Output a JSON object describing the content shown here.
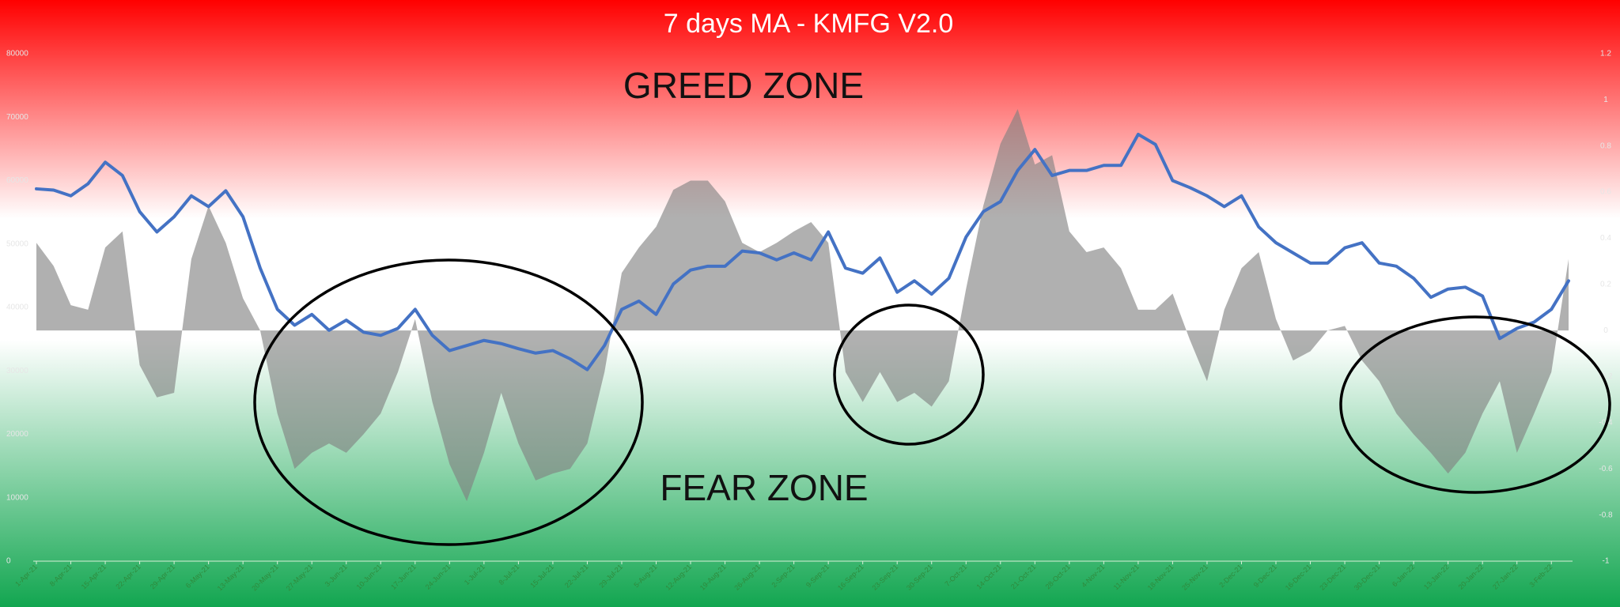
{
  "chart_data": {
    "type": "line",
    "title": "7 days MA - KMFG V2.0",
    "annotations": [
      "GREED ZONE",
      "FEAR ZONE"
    ],
    "categories": [
      "1-Apr-21",
      null,
      "8-Apr-21",
      null,
      "15-Apr-21",
      null,
      "22-Apr-21",
      null,
      "29-Apr-21",
      null,
      "6-May-21",
      null,
      "13-May-21",
      null,
      "20-May-21",
      null,
      "27-May-21",
      null,
      "3-Jun-21",
      null,
      "10-Jun-21",
      null,
      "17-Jun-21",
      null,
      "24-Jun-21",
      null,
      "1-Jul-21",
      null,
      "8-Jul-21",
      null,
      "15-Jul-21",
      null,
      "22-Jul-21",
      null,
      "29-Jul-21",
      null,
      "5-Aug-21",
      null,
      "12-Aug-21",
      null,
      "19-Aug-21",
      null,
      "26-Aug-21",
      null,
      "2-Sep-21",
      null,
      "9-Sep-21",
      null,
      "16-Sep-21",
      null,
      "23-Sep-21",
      null,
      "30-Sep-21",
      null,
      "7-Oct-21",
      null,
      "14-Oct-21",
      null,
      "21-Oct-21",
      null,
      "28-Oct-21",
      null,
      "4-Nov-21",
      null,
      "11-Nov-21",
      null,
      "18-Nov-21",
      null,
      "25-Nov-21",
      null,
      "2-Dec-21",
      null,
      "9-Dec-21",
      null,
      "16-Dec-21",
      null,
      "23-Dec-21",
      null,
      "30-Dec-21",
      null,
      "6-Jan-22",
      null,
      "13-Jan-22",
      null,
      "20-Jan-22",
      null,
      "27-Jan-22",
      null,
      "3-Feb-22",
      null
    ],
    "series": [
      {
        "type": "area",
        "axis": "y2",
        "color": "#7f7f7f",
        "values": [
          0.38,
          0.28,
          0.11,
          0.09,
          0.36,
          0.43,
          -0.15,
          -0.29,
          -0.27,
          0.31,
          0.54,
          0.38,
          0.14,
          0.0,
          -0.36,
          -0.6,
          -0.53,
          -0.49,
          -0.53,
          -0.45,
          -0.36,
          -0.18,
          0.05,
          -0.31,
          -0.58,
          -0.74,
          -0.53,
          -0.27,
          -0.49,
          -0.65,
          -0.62,
          -0.6,
          -0.49,
          -0.18,
          0.25,
          0.36,
          0.45,
          0.61,
          0.65,
          0.65,
          0.56,
          0.38,
          0.34,
          0.38,
          0.43,
          0.47,
          0.38,
          -0.18,
          -0.31,
          -0.18,
          -0.31,
          -0.27,
          -0.33,
          -0.22,
          0.18,
          0.54,
          0.81,
          0.96,
          0.72,
          0.76,
          0.43,
          0.34,
          0.36,
          0.27,
          0.09,
          0.09,
          0.16,
          -0.04,
          -0.22,
          0.09,
          0.27,
          0.34,
          0.05,
          -0.13,
          -0.09,
          0.0,
          0.02,
          -0.13,
          -0.22,
          -0.36,
          -0.45,
          -0.53,
          -0.62,
          -0.53,
          -0.36,
          -0.22,
          -0.53,
          -0.36,
          -0.18,
          0.31
        ]
      },
      {
        "type": "line",
        "color": "#4472c4",
        "values": [
          58700,
          58500,
          57600,
          59500,
          62900,
          60800,
          55100,
          51900,
          54300,
          57600,
          55900,
          58400,
          54300,
          46200,
          39700,
          37200,
          38900,
          36400,
          38000,
          36100,
          35600,
          36700,
          39700,
          35600,
          33200,
          34000,
          34800,
          34300,
          33500,
          32800,
          33200,
          31900,
          30200,
          34000,
          39700,
          41000,
          38900,
          43700,
          45900,
          46500,
          46500,
          48900,
          48600,
          47500,
          48600,
          47500,
          51900,
          46200,
          45400,
          47800,
          42400,
          44200,
          42100,
          44600,
          51100,
          55100,
          56700,
          61600,
          64900,
          60800,
          61600,
          61600,
          62400,
          62400,
          67300,
          65700,
          60000,
          58900,
          57600,
          55900,
          57600,
          52700,
          50200,
          48600,
          47000,
          47000,
          49400,
          50200,
          47000,
          46500,
          44600,
          41600,
          42900,
          43200,
          41800,
          35100,
          36700,
          37700,
          39700,
          44200
        ]
      }
    ],
    "ylim": [
      0,
      80000
    ],
    "yticks": [
      0,
      10000,
      20000,
      30000,
      40000,
      50000,
      60000,
      70000,
      80000
    ],
    "y2lim": [
      -1,
      1.2
    ],
    "y2ticks": [
      -1,
      -0.8,
      -0.6,
      -0.4,
      -0.2,
      0,
      0.2,
      0.4,
      0.6,
      0.8,
      1,
      1.2
    ]
  }
}
